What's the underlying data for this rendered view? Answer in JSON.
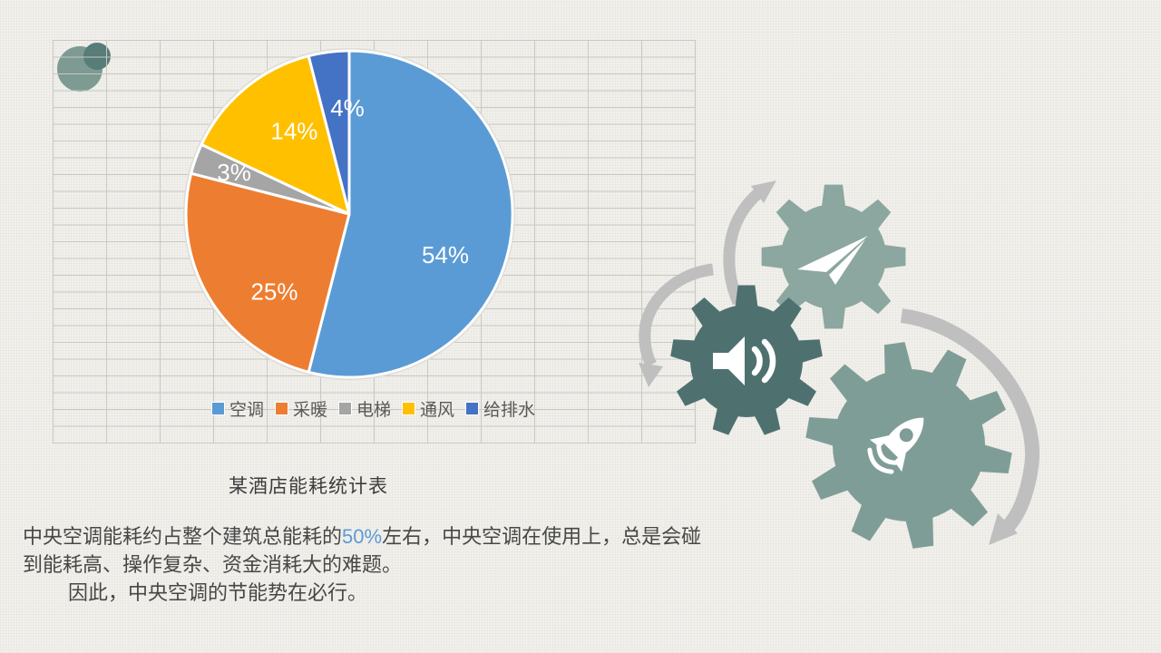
{
  "slide": {
    "caption": "某酒店能耗统计表",
    "body": {
      "line1_pre": "中央空调能耗约占整个建筑总能耗的",
      "line1_highlight": "50%",
      "line1_post": "左右，中央空调在使用上，总是会碰",
      "line2": "到能耗高、操作复杂、资金消耗大的难题。",
      "line3": "因此，中央空调的节能势在必行。"
    },
    "highlight_color": "#5b9bd5",
    "text_color": "#474747"
  },
  "chart_data": {
    "type": "pie",
    "title": "某酒店能耗统计表",
    "categories": [
      "空调",
      "采暖",
      "电梯",
      "通风",
      "给排水"
    ],
    "values": [
      54,
      25,
      3,
      14,
      4
    ],
    "unit": "%",
    "data_labels": [
      "54%",
      "25%",
      "3%",
      "14%",
      "4%"
    ],
    "colors": [
      "#5b9bd5",
      "#ed7d31",
      "#a5a5a5",
      "#ffc000",
      "#4472c4"
    ],
    "legend_position": "bottom",
    "start_angle_deg": 0,
    "direction": "clockwise",
    "background": "spreadsheet-gridlines"
  },
  "decor": {
    "logo": "two-circles-logo",
    "logo_colors": [
      "#7d9a93",
      "#587c78"
    ],
    "gear_icons": [
      "paper-plane-icon",
      "speaker-icon",
      "rocket-icon"
    ],
    "gear_colors": [
      "#8ba79f",
      "#4e7170",
      "#7f9d97"
    ],
    "arrow_color": "#bfbfbf",
    "grid_line_color": "#c9c8c3",
    "background_color": "#f1f0ec"
  }
}
